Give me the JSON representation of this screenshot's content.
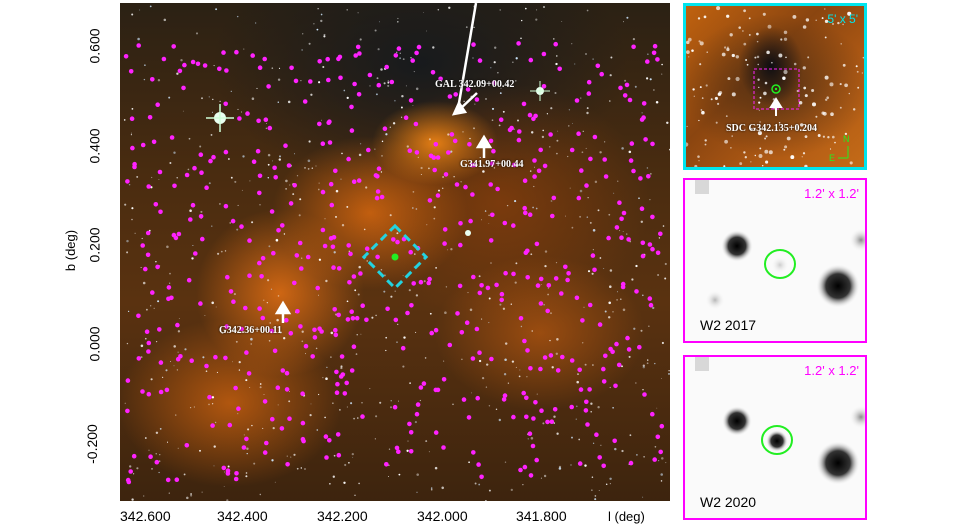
{
  "main_image": {
    "labels": {
      "gal": "GAL 342.09+00.42",
      "g341": "G341.97+00.44",
      "g342": "G342.36+00.11"
    },
    "y_axis": {
      "label": "b (deg)",
      "ticks": [
        "0.600",
        "0.400",
        "0.200",
        "0.000",
        "-0.200"
      ]
    },
    "x_axis": {
      "label": "l (deg)",
      "ticks": [
        "342.600",
        "342.400",
        "342.200",
        "342.000",
        "341.800"
      ]
    },
    "colors": {
      "markers": "#ff22ff",
      "box": "#22d3e0",
      "source": "#22ee22",
      "arrow": "#ffffff"
    }
  },
  "panel_top": {
    "size_label": "5' x 5'",
    "source_label": "SDC G342.135+0.204",
    "compass_n": "N",
    "compass_e": "E"
  },
  "panel_mid": {
    "size_label": "1.2' x 1.2'",
    "name": "W2 2017"
  },
  "panel_bot": {
    "size_label": "1.2' x 1.2'",
    "name": "W2 2020"
  }
}
